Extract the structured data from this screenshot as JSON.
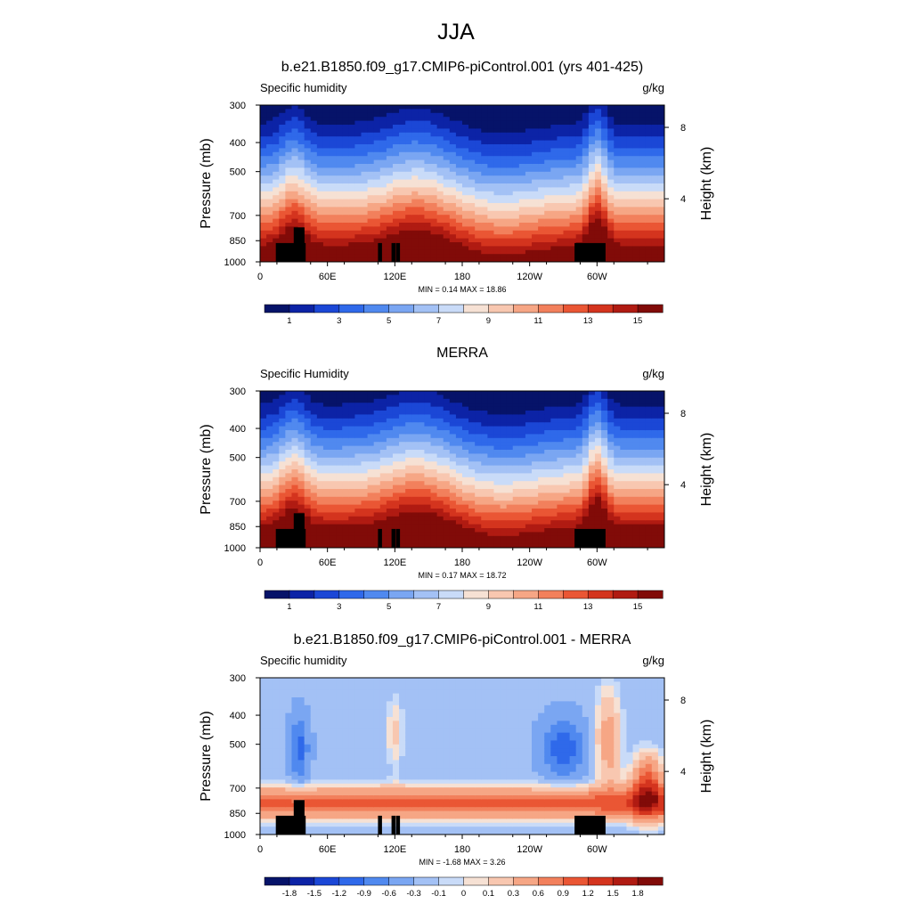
{
  "title": "JJA",
  "colorbar_colors": {
    "abs": [
      "#061369",
      "#0c23a6",
      "#1b47d6",
      "#2f69ea",
      "#5089ef",
      "#7aa6f2",
      "#a3c1f5",
      "#c9dbf8",
      "#f6e1d4",
      "#f8c7b0",
      "#f6a685",
      "#f2805c",
      "#ea5634",
      "#d4341e",
      "#b01b12",
      "#810b08"
    ],
    "diff": [
      "#061369",
      "#0c23a6",
      "#1b47d6",
      "#2f69ea",
      "#5089ef",
      "#7aa6f2",
      "#a3c1f5",
      "#c9dbf8",
      "#f6e1d4",
      "#f8c7b0",
      "#f6a685",
      "#f2805c",
      "#ea5634",
      "#d4341e",
      "#b01b12",
      "#810b08"
    ]
  },
  "chart_data": [
    {
      "type": "heatmap",
      "title": "b.e21.B1850.f09_g17.CMIP6-piControl.001 (yrs 401-425)",
      "left_label": "Specific humidity",
      "right_label": "g/kg",
      "xlabel": "",
      "ylabel": "Pressure (mb)",
      "ylabel_right": "Height (km)",
      "x_ticks": [
        "0",
        "60E",
        "120E",
        "180",
        "120W",
        "60W"
      ],
      "y_ticks": [
        "300",
        "400",
        "500",
        "700",
        "850",
        "1000"
      ],
      "y_right_ticks": [
        "8",
        "4"
      ],
      "minmax": "MIN =   0.14  MAX =  18.86",
      "min": 0.14,
      "max": 18.86,
      "colorbar_ticks": [
        "1",
        "3",
        "5",
        "7",
        "9",
        "11",
        "13",
        "15"
      ]
    },
    {
      "type": "heatmap",
      "title": "MERRA",
      "left_label": "Specific Humidity",
      "right_label": "g/kg",
      "xlabel": "",
      "ylabel": "Pressure (mb)",
      "ylabel_right": "Height (km)",
      "x_ticks": [
        "0",
        "60E",
        "120E",
        "180",
        "120W",
        "60W"
      ],
      "y_ticks": [
        "300",
        "400",
        "500",
        "700",
        "850",
        "1000"
      ],
      "y_right_ticks": [
        "8",
        "4"
      ],
      "minmax": "MIN =   0.17  MAX =  18.72",
      "min": 0.17,
      "max": 18.72,
      "colorbar_ticks": [
        "1",
        "3",
        "5",
        "7",
        "9",
        "11",
        "13",
        "15"
      ]
    },
    {
      "type": "heatmap",
      "title": "b.e21.B1850.f09_g17.CMIP6-piControl.001 - MERRA",
      "left_label": "Specific humidity",
      "right_label": "g/kg",
      "xlabel": "",
      "ylabel": "Pressure (mb)",
      "ylabel_right": "Height (km)",
      "x_ticks": [
        "0",
        "60E",
        "120E",
        "180",
        "120W",
        "60W"
      ],
      "y_ticks": [
        "300",
        "400",
        "500",
        "700",
        "850",
        "1000"
      ],
      "y_right_ticks": [
        "8",
        "4"
      ],
      "minmax": "MIN =  -1.68  MAX =   3.26",
      "min": -1.68,
      "max": 3.26,
      "colorbar_ticks": [
        "-1.8",
        "-1.5",
        "-1.2",
        "-0.9",
        "-0.6",
        "-0.3",
        "-0.1",
        "0",
        "0.1",
        "0.3",
        "0.6",
        "0.9",
        "1.2",
        "1.5",
        "1.8"
      ]
    }
  ]
}
